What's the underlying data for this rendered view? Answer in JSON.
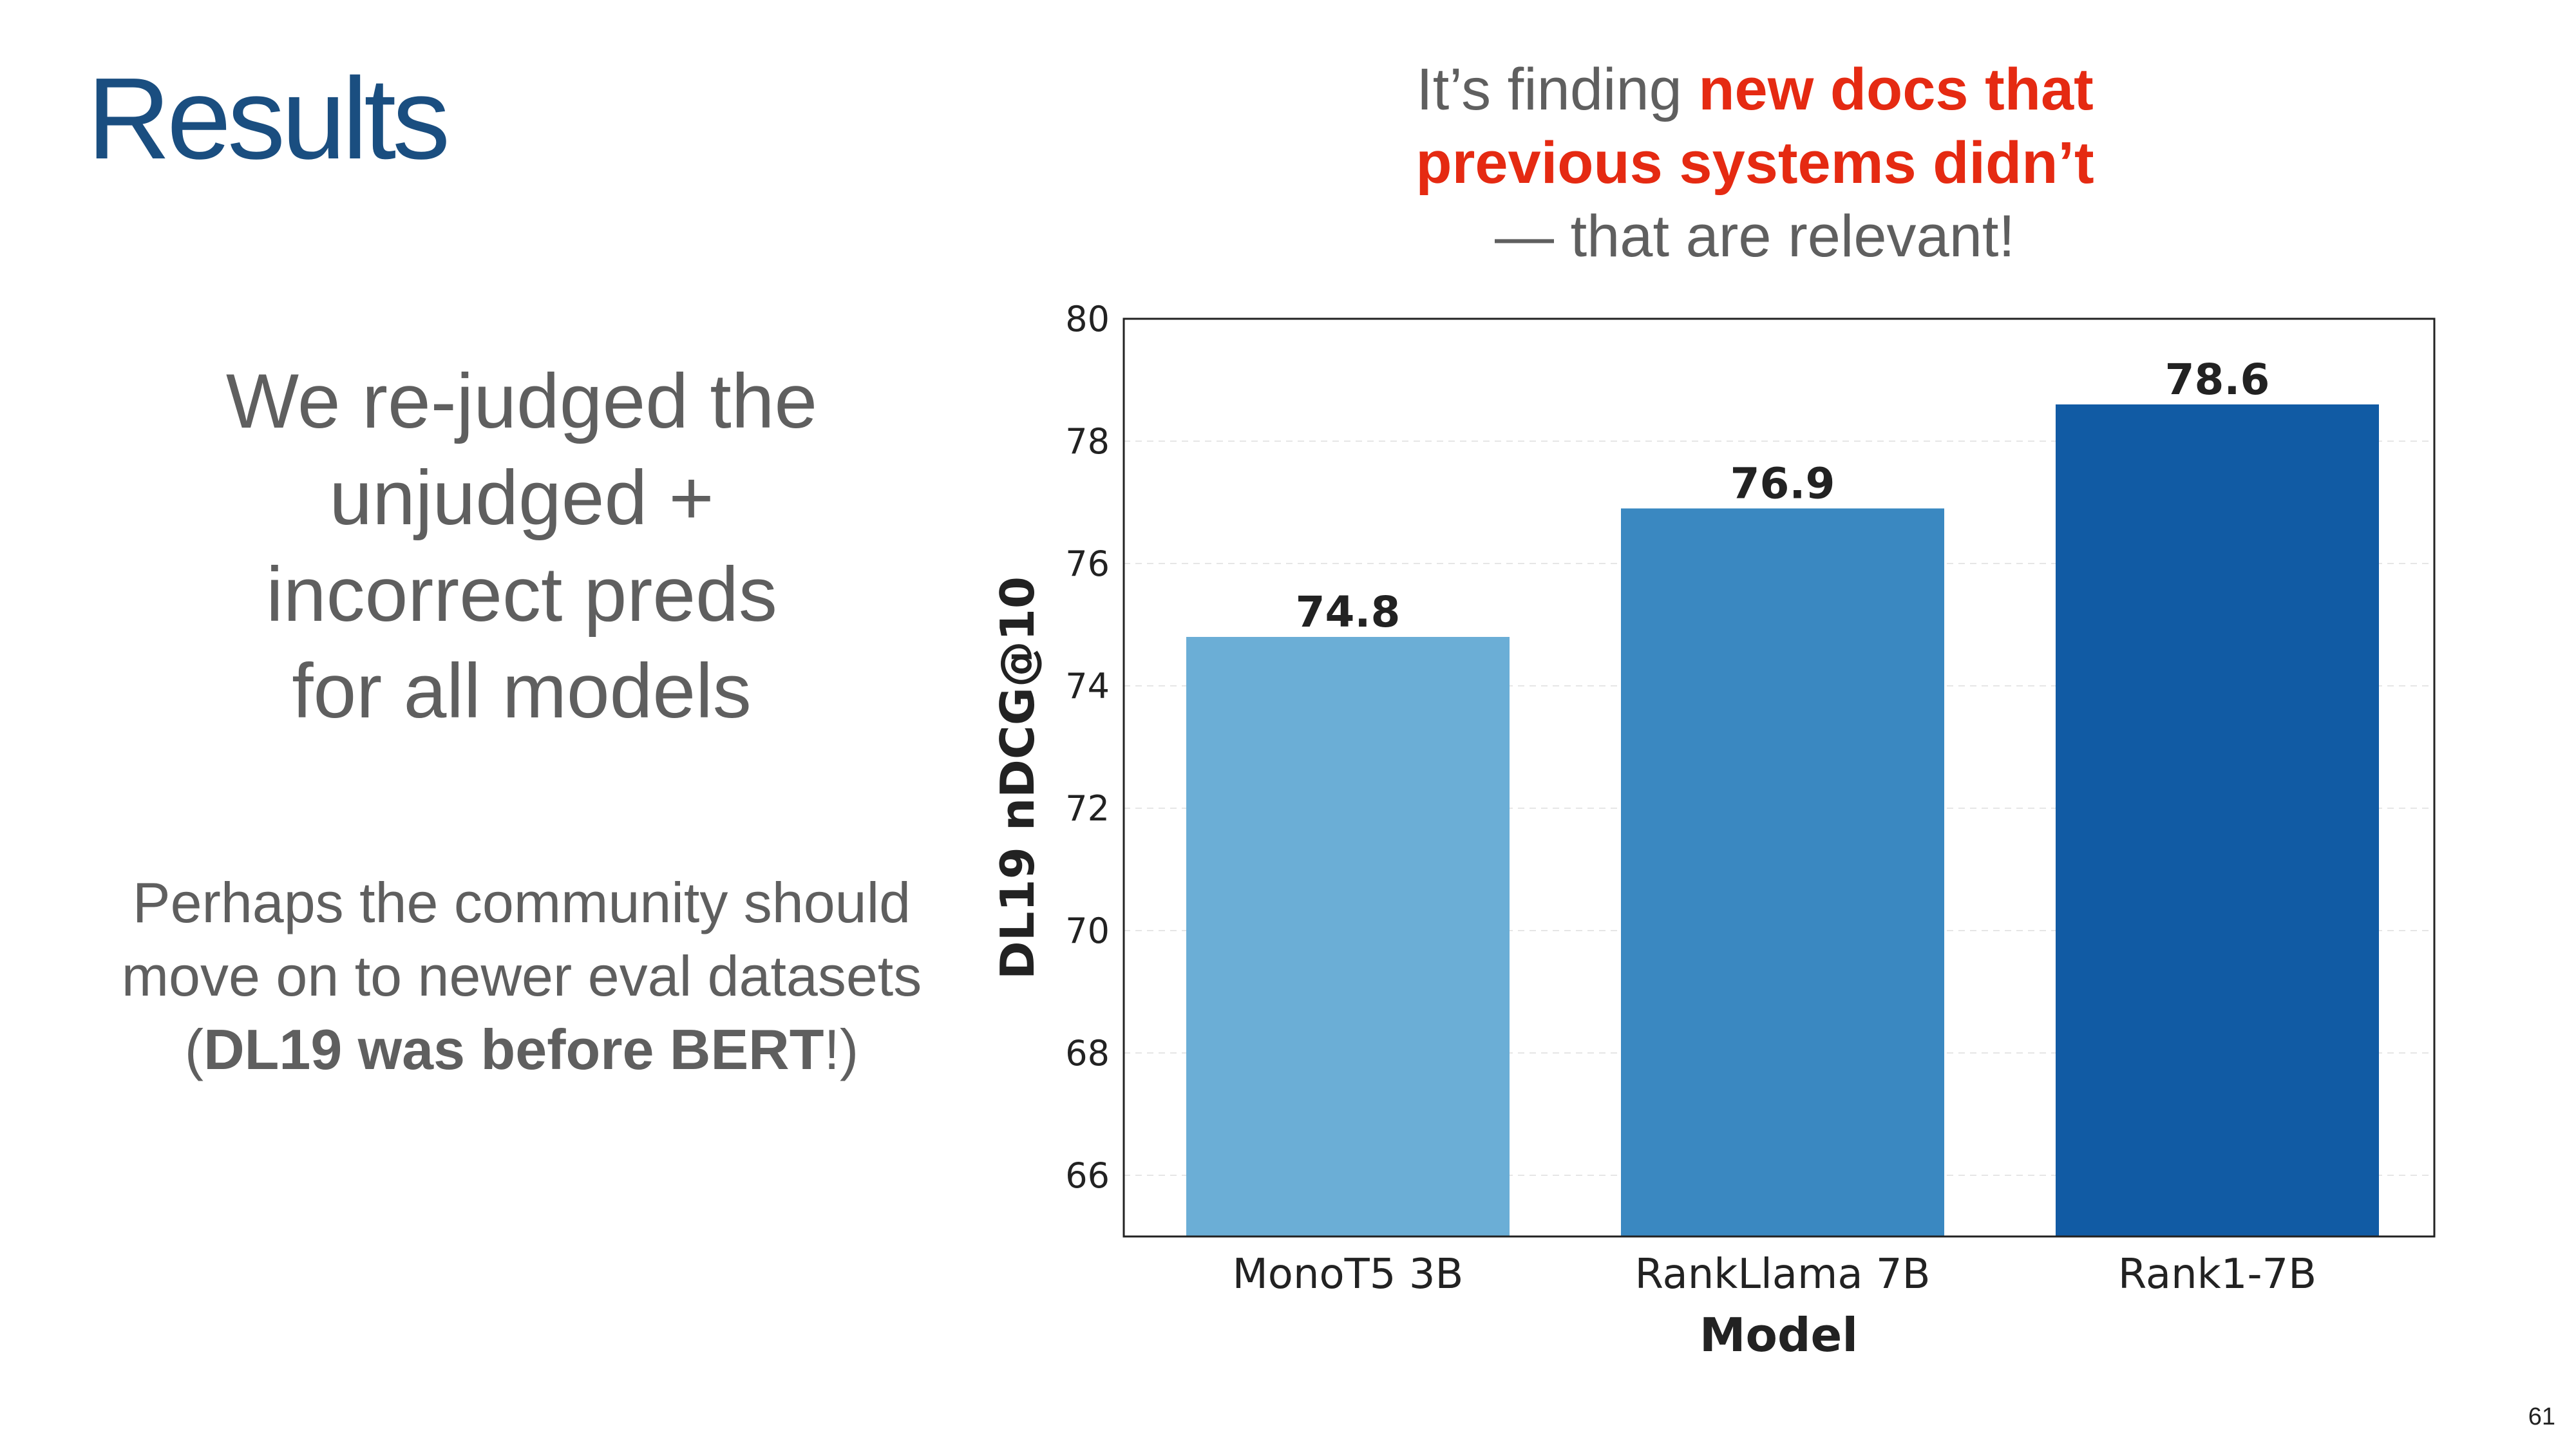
{
  "slide": {
    "title": "Results",
    "main_lines": [
      "We re-judged the",
      "unjudged +",
      "incorrect preds",
      "for all models"
    ],
    "note": {
      "pre": "Perhaps the community should move on to newer eval datasets (",
      "bold": "DL19 was before BERT",
      "post": "!)"
    },
    "callout": {
      "pre": "It’s finding ",
      "highlight": "new docs that previous systems didn’t",
      "post": "— that are relevant!"
    },
    "page_number": "61"
  },
  "colors": {
    "title": "#1a4e80",
    "highlight": "#e52a12",
    "text": "#5f5f5f"
  },
  "chart_data": {
    "type": "bar",
    "categories": [
      "MonoT5 3B",
      "RankLlama 7B",
      "Rank1-7B"
    ],
    "values": [
      74.8,
      76.9,
      78.6
    ],
    "value_labels": [
      "74.8",
      "76.9",
      "78.6"
    ],
    "colors": [
      "#6baed6",
      "#3a88c1",
      "#115ba4"
    ],
    "xlabel": "Model",
    "ylabel": "DL19 nDCG@10",
    "ylim": [
      65,
      80
    ],
    "yticks": [
      "66",
      "68",
      "70",
      "72",
      "74",
      "76",
      "78",
      "80"
    ],
    "grid": "horizontal dashed",
    "legend": "none"
  }
}
